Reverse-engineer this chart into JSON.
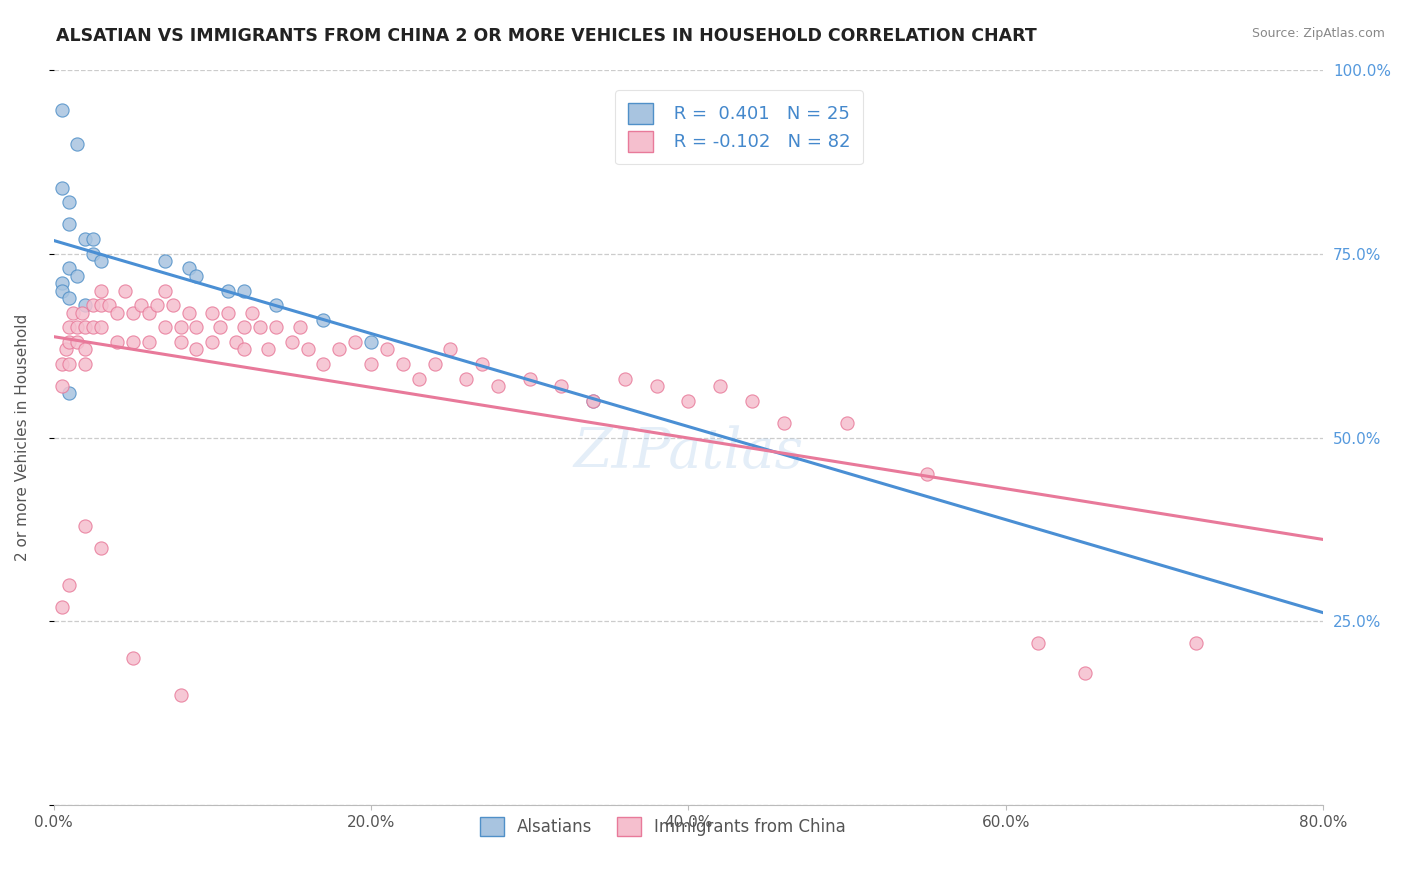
{
  "title": "ALSATIAN VS IMMIGRANTS FROM CHINA 2 OR MORE VEHICLES IN HOUSEHOLD CORRELATION CHART",
  "source": "Source: ZipAtlas.com",
  "ylabel": "2 or more Vehicles in Household",
  "xlim": [
    0.0,
    0.8
  ],
  "ylim": [
    0.0,
    1.0
  ],
  "xticks": [
    0.0,
    0.2,
    0.4,
    0.6,
    0.8
  ],
  "xticklabels": [
    "0.0%",
    "20.0%",
    "40.0%",
    "60.0%",
    "80.0%"
  ],
  "yticks": [
    0.0,
    0.25,
    0.5,
    0.75,
    1.0
  ],
  "yticklabels": [
    "",
    "25.0%",
    "50.0%",
    "75.0%",
    "100.0%"
  ],
  "blue_R": 0.401,
  "blue_N": 25,
  "pink_R": -0.102,
  "pink_N": 82,
  "legend_label_blue": "Alsatians",
  "legend_label_pink": "Immigrants from China",
  "blue_color": "#a8c4e0",
  "blue_edge_color": "#5090c8",
  "blue_line_color": "#4a8fd4",
  "pink_color": "#f5bfce",
  "pink_edge_color": "#e87a9a",
  "pink_line_color": "#e8799a",
  "watermark": "ZIPatlas",
  "blue_scatter_x": [
    0.005,
    0.015,
    0.005,
    0.01,
    0.01,
    0.02,
    0.025,
    0.025,
    0.03,
    0.01,
    0.015,
    0.005,
    0.005,
    0.01,
    0.02,
    0.01,
    0.07,
    0.085,
    0.09,
    0.11,
    0.12,
    0.14,
    0.17,
    0.2,
    0.34
  ],
  "blue_scatter_y": [
    0.945,
    0.9,
    0.84,
    0.82,
    0.79,
    0.77,
    0.77,
    0.75,
    0.74,
    0.73,
    0.72,
    0.71,
    0.7,
    0.69,
    0.68,
    0.56,
    0.74,
    0.73,
    0.72,
    0.7,
    0.7,
    0.68,
    0.66,
    0.63,
    0.55
  ],
  "pink_scatter_x": [
    0.005,
    0.005,
    0.008,
    0.01,
    0.01,
    0.01,
    0.012,
    0.015,
    0.015,
    0.018,
    0.02,
    0.02,
    0.02,
    0.025,
    0.025,
    0.03,
    0.03,
    0.03,
    0.035,
    0.04,
    0.04,
    0.045,
    0.05,
    0.05,
    0.055,
    0.06,
    0.06,
    0.065,
    0.07,
    0.07,
    0.075,
    0.08,
    0.08,
    0.085,
    0.09,
    0.09,
    0.1,
    0.1,
    0.105,
    0.11,
    0.115,
    0.12,
    0.12,
    0.125,
    0.13,
    0.135,
    0.14,
    0.15,
    0.155,
    0.16,
    0.17,
    0.18,
    0.19,
    0.2,
    0.21,
    0.22,
    0.23,
    0.24,
    0.25,
    0.26,
    0.27,
    0.28,
    0.3,
    0.32,
    0.34,
    0.36,
    0.38,
    0.4,
    0.42,
    0.44,
    0.46,
    0.5,
    0.55,
    0.62,
    0.65,
    0.72,
    0.005,
    0.01,
    0.02,
    0.03,
    0.05,
    0.08
  ],
  "pink_scatter_y": [
    0.6,
    0.57,
    0.62,
    0.65,
    0.63,
    0.6,
    0.67,
    0.65,
    0.63,
    0.67,
    0.65,
    0.62,
    0.6,
    0.68,
    0.65,
    0.7,
    0.68,
    0.65,
    0.68,
    0.67,
    0.63,
    0.7,
    0.67,
    0.63,
    0.68,
    0.67,
    0.63,
    0.68,
    0.7,
    0.65,
    0.68,
    0.65,
    0.63,
    0.67,
    0.65,
    0.62,
    0.67,
    0.63,
    0.65,
    0.67,
    0.63,
    0.65,
    0.62,
    0.67,
    0.65,
    0.62,
    0.65,
    0.63,
    0.65,
    0.62,
    0.6,
    0.62,
    0.63,
    0.6,
    0.62,
    0.6,
    0.58,
    0.6,
    0.62,
    0.58,
    0.6,
    0.57,
    0.58,
    0.57,
    0.55,
    0.58,
    0.57,
    0.55,
    0.57,
    0.55,
    0.52,
    0.52,
    0.45,
    0.22,
    0.18,
    0.22,
    0.27,
    0.3,
    0.38,
    0.35,
    0.2,
    0.15
  ]
}
